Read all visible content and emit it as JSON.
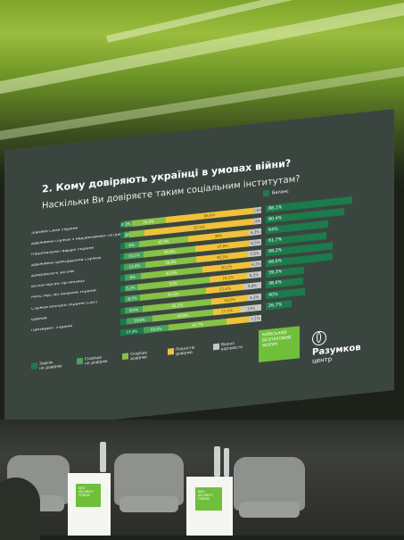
{
  "slide": {
    "title": "2. Кому довіряють українці в умовах війни?",
    "subtitle": "Наскільки Ви довіряєте таким соціальним інститутам?",
    "balance_label": "Баланс",
    "rows": [
      {
        "label": "Збройні Сили України",
        "segments": [
          "0,8%",
          "3%",
          "24,3%",
          "68,4%",
          "2,8%"
        ],
        "balance": "88,1%",
        "balance_frac": 0.88
      },
      {
        "label": "Державна служба\nз надзвичайних ситуацій",
        "segments": [
          "",
          "1,8%",
          "",
          "52,5%",
          "4%"
        ],
        "balance": "80,4%",
        "balance_frac": 0.8
      },
      {
        "label": "Національна гвардія України",
        "segments": [
          "",
          "6%",
          "35,7%",
          "39%",
          "6,3%"
        ],
        "balance": "64%",
        "balance_frac": 0.64
      },
      {
        "label": "Державна прикордонна служба",
        "segments": [
          "",
          "10,2%",
          "39,8%",
          "37,8%",
          "6,5%"
        ],
        "balance": "61,7%",
        "balance_frac": 0.62
      },
      {
        "label": "Добровольчі загони",
        "segments": [
          "",
          "11,6%",
          "39,8%",
          "36,3%",
          "7,9%"
        ],
        "balance": "68,2%",
        "balance_frac": 0.68
      },
      {
        "label": "Волонтерські організації",
        "segments": [
          "",
          "8%",
          "43,9%",
          "30,2%",
          "4,2%"
        ],
        "balance": "68,6%",
        "balance_frac": 0.686
      },
      {
        "label": "Міністерство оборони України",
        "segments": [
          "",
          "5,2%",
          "52%",
          "23,1%",
          "8,3%"
        ],
        "balance": "39,3%",
        "balance_frac": 0.39
      },
      {
        "label": "Служба безпеки України (СБУ)",
        "segments": [
          "",
          "6,7%",
          "42,4%",
          "22,4%",
          "9,8%"
        ],
        "balance": "38,6%",
        "balance_frac": 0.386
      },
      {
        "label": "Церква",
        "segments": [
          "",
          "8,4%",
          "42,1%",
          "19,6%",
          "6,3%"
        ],
        "balance": "40%",
        "balance_frac": 0.4
      },
      {
        "label": "Президент України",
        "segments": [
          "",
          "19,6%",
          "43,9%",
          "17,1%",
          "13%"
        ],
        "balance": "26,7%",
        "balance_frac": 0.267
      },
      {
        "label": "",
        "segments": [
          "17,4%",
          "19,4%",
          "42,7%",
          "",
          "7,1%"
        ],
        "balance": "",
        "balance_frac": 0
      }
    ],
    "legend": [
      {
        "label": "Зовсім\nне довіряю",
        "color": "#1d7a4a"
      },
      {
        "label": "Скоріше\nне довіряю",
        "color": "#49a25a"
      },
      {
        "label": "Скоріше\nдовіряю",
        "color": "#86c247"
      },
      {
        "label": "Повністю\nдовіряю",
        "color": "#efc23a"
      },
      {
        "label": "Важко\nвідповісти",
        "color": "#c7c8c6"
      }
    ],
    "forum_badge": "КИЇВСЬКИЙ\nБЕЗПЕКОВИЙ\nФОРУМ",
    "org_name": "Разумков",
    "org_sub": "центр"
  },
  "stage": {
    "table_logo": "KIEV\nSECURITY\nFORUM"
  }
}
